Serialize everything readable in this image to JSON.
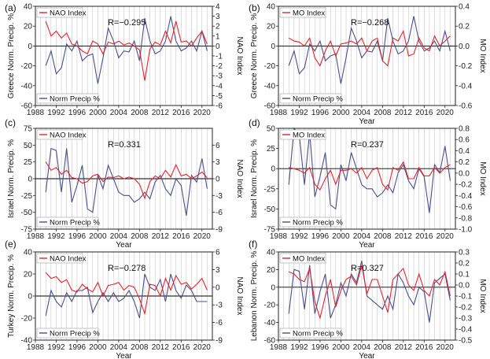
{
  "colors": {
    "precip": "#4a4f8a",
    "index": "#e8222a",
    "grid": "#c8c8c8",
    "axis": "#222222"
  },
  "chart_data": [
    {
      "panel": "(a)",
      "type": "line",
      "r_text": "R=−0.295",
      "xlabel": "Year",
      "ylabel": "Greece Norm. Precip. %",
      "y2label": "NAO Index",
      "x_ticks": [
        "1988",
        "1992",
        "1996",
        "2000",
        "2004",
        "2008",
        "2012",
        "2016",
        "2020"
      ],
      "xlim": [
        1988,
        2022
      ],
      "ylim": [
        -60,
        40
      ],
      "y_ticks": [
        "-60",
        "-40",
        "-20",
        "0",
        "20",
        "40"
      ],
      "y2lim": [
        -6,
        4
      ],
      "y2_ticks": [
        "-6",
        "-5",
        "-4",
        "-3",
        "-2",
        "-1",
        "0",
        "1",
        "2",
        "3",
        "4"
      ],
      "show_xlabel": false,
      "legend_top": "NAO Index",
      "legend_bottom": "Norm Precip %",
      "x": [
        1990,
        1991,
        1992,
        1993,
        1994,
        1995,
        1996,
        1997,
        1998,
        1999,
        2000,
        2001,
        2002,
        2003,
        2004,
        2005,
        2006,
        2007,
        2008,
        2009,
        2010,
        2011,
        2012,
        2013,
        2014,
        2015,
        2016,
        2017,
        2018,
        2019,
        2020,
        2021
      ],
      "series": [
        {
          "values": [
            -20,
            -5,
            -28,
            -22,
            2,
            -5,
            5,
            -15,
            -10,
            -8,
            -38,
            -12,
            18,
            5,
            -12,
            -5,
            -6,
            5,
            -15,
            28,
            5,
            -8,
            -5,
            5,
            30,
            5,
            -5,
            -2,
            5,
            -5,
            15,
            -5
          ]
        },
        {
          "axis": "right",
          "values": [
            2.5,
            1,
            1.5,
            0.8,
            1.3,
            0.2,
            0,
            -0.5,
            -0.8,
            0.5,
            0.2,
            -0.8,
            0.4,
            0.2,
            0.5,
            0.1,
            0.3,
            0,
            -0.4,
            -3.5,
            -0.3,
            0.4,
            0.1,
            1.5,
            0.3,
            2.5,
            0.4,
            0.5,
            0,
            0.8,
            1.5,
            0.2
          ]
        }
      ]
    },
    {
      "panel": "(b)",
      "type": "line",
      "r_text": "R=−0.268",
      "xlabel": "Year",
      "ylabel": "Greece Norm. Precip. %",
      "y2label": "MO Index",
      "x_ticks": [
        "1988",
        "1992",
        "1996",
        "2000",
        "2004",
        "2008",
        "2012",
        "2016",
        "2020"
      ],
      "xlim": [
        1988,
        2022
      ],
      "ylim": [
        -60,
        40
      ],
      "y_ticks": [
        "-60",
        "-40",
        "-20",
        "0",
        "20",
        "40"
      ],
      "y2lim": [
        -0.6,
        0.4
      ],
      "y2_ticks": [
        "-0.6",
        "-0.4",
        "-0.2",
        "0.0",
        "0.2",
        "0.4"
      ],
      "show_xlabel": true,
      "legend_top": "MO Index",
      "legend_bottom": "Norm Precip %",
      "x": [
        1990,
        1991,
        1992,
        1993,
        1994,
        1995,
        1996,
        1997,
        1998,
        1999,
        2000,
        2001,
        2002,
        2003,
        2004,
        2005,
        2006,
        2007,
        2008,
        2009,
        2010,
        2011,
        2012,
        2013,
        2014,
        2015,
        2016,
        2017,
        2018,
        2019,
        2020,
        2021
      ],
      "series": [
        {
          "values": [
            -20,
            -5,
            -28,
            -22,
            2,
            -5,
            5,
            -15,
            -10,
            -8,
            -38,
            -12,
            18,
            5,
            -12,
            -5,
            -6,
            5,
            -15,
            28,
            5,
            -8,
            -5,
            5,
            30,
            5,
            -5,
            -2,
            5,
            -5,
            15,
            -5
          ]
        },
        {
          "axis": "right",
          "values": [
            0.08,
            0.05,
            0.04,
            0,
            0.08,
            -0.12,
            -0.2,
            -0.05,
            0.05,
            -0.1,
            0.02,
            0.03,
            0.05,
            0.02,
            0.08,
            -0.05,
            0.05,
            0.08,
            -0.15,
            -0.2,
            0.08,
            0.05,
            0.15,
            -0.1,
            -0.08,
            0.08,
            -0.02,
            -0.05,
            0.1,
            0,
            0.05,
            0.1
          ]
        }
      ]
    },
    {
      "panel": "(c)",
      "type": "line",
      "r_text": "R=0.331",
      "xlabel": "Year",
      "ylabel": "Israel Norm. Precip. %",
      "y2label": "NAO Index",
      "x_ticks": [
        "1988",
        "1992",
        "1996",
        "2000",
        "2004",
        "2008",
        "2012",
        "2016",
        "2020"
      ],
      "xlim": [
        1988,
        2022
      ],
      "ylim": [
        -75,
        75
      ],
      "y_ticks": [
        "-75",
        "-50",
        "-25",
        "0",
        "25",
        "50",
        "75"
      ],
      "y2lim": [
        -9,
        9
      ],
      "y2_ticks": [
        "-9",
        "-6",
        "-3",
        "0",
        "3",
        "6"
      ],
      "show_xlabel": true,
      "legend_top": "NAO Index",
      "legend_bottom": "Norm Precip %",
      "x": [
        1990,
        1991,
        1992,
        1993,
        1994,
        1995,
        1996,
        1997,
        1998,
        1999,
        2000,
        2001,
        2002,
        2003,
        2004,
        2005,
        2006,
        2007,
        2008,
        2009,
        2010,
        2011,
        2012,
        2013,
        2014,
        2015,
        2016,
        2017,
        2018,
        2019,
        2020,
        2021
      ],
      "series": [
        {
          "values": [
            -20,
            45,
            42,
            -20,
            45,
            -35,
            -10,
            20,
            -45,
            -50,
            5,
            -15,
            20,
            0,
            -20,
            -25,
            -25,
            -35,
            -30,
            -20,
            -30,
            -5,
            5,
            -15,
            -25,
            0,
            -10,
            -55,
            5,
            -5,
            30,
            -15
          ]
        },
        {
          "axis": "right",
          "values": [
            3,
            1.5,
            2,
            0.8,
            1.5,
            0.2,
            0,
            -0.8,
            -0.5,
            0.5,
            0.8,
            -0.5,
            0.3,
            0.2,
            0.5,
            0,
            0.3,
            0,
            -1,
            -3.5,
            -0.5,
            0.5,
            0,
            1.5,
            0.3,
            2.5,
            0.5,
            0.8,
            0,
            0.5,
            1.2,
            0.2
          ]
        }
      ]
    },
    {
      "panel": "(d)",
      "type": "line",
      "r_text": "R=0.237",
      "xlabel": "Year",
      "ylabel": "Israel Norm. Precip. %",
      "y2label": "MO Index",
      "x_ticks": [
        "1988",
        "1992",
        "1996",
        "2000",
        "2004",
        "2008",
        "2012",
        "2016",
        "2020"
      ],
      "xlim": [
        1988,
        2022
      ],
      "ylim": [
        -75,
        50
      ],
      "y_ticks": [
        "-75",
        "-50",
        "-25",
        "0",
        "25",
        "50"
      ],
      "y2lim": [
        -1.0,
        0.8
      ],
      "y2_ticks": [
        "-1.0",
        "-0.8",
        "-0.6",
        "-0.4",
        "-0.2",
        "0.0",
        "0.2",
        "0.4",
        "0.6",
        "0.8"
      ],
      "show_xlabel": true,
      "legend_top": "MO Index",
      "legend_bottom": "Norm Precip %",
      "x": [
        1990,
        1991,
        1992,
        1993,
        1994,
        1995,
        1996,
        1997,
        1998,
        1999,
        2000,
        2001,
        2002,
        2003,
        2004,
        2005,
        2006,
        2007,
        2008,
        2009,
        2010,
        2011,
        2012,
        2013,
        2014,
        2015,
        2016,
        2017,
        2018,
        2019,
        2020,
        2021
      ],
      "series": [
        {
          "values": [
            -20,
            50,
            42,
            -20,
            45,
            -35,
            -10,
            20,
            -45,
            -50,
            5,
            -15,
            20,
            0,
            -20,
            -25,
            -25,
            -35,
            -30,
            -20,
            -30,
            -5,
            5,
            -15,
            -25,
            0,
            -10,
            -55,
            5,
            -5,
            28,
            -15
          ]
        },
        {
          "axis": "right",
          "values": [
            0.1,
            0.08,
            0.05,
            0,
            0.1,
            -0.2,
            -0.3,
            -0.1,
            0.05,
            -0.2,
            0.05,
            0.05,
            0.08,
            0,
            0.1,
            -0.1,
            0.05,
            0.1,
            -0.2,
            -0.3,
            0.1,
            0.05,
            0.2,
            -0.1,
            -0.1,
            0.1,
            -0.05,
            -0.05,
            0.1,
            0,
            0.1,
            0.15
          ]
        }
      ]
    },
    {
      "panel": "(e)",
      "type": "line",
      "r_text": "R=−0.278",
      "xlabel": "Year",
      "ylabel": "Turkey Norm. Precip. %",
      "y2label": "NAO Index",
      "x_ticks": [
        "1988",
        "1992",
        "1996",
        "2000",
        "2004",
        "2008",
        "2012",
        "2016",
        "2020"
      ],
      "xlim": [
        1988,
        2022
      ],
      "ylim": [
        -40,
        40
      ],
      "y_ticks": [
        "-40",
        "-20",
        "0",
        "20",
        "40"
      ],
      "y2lim": [
        -9,
        6
      ],
      "y2_ticks": [
        "-9",
        "-6",
        "-3",
        "0",
        "3",
        "6"
      ],
      "show_xlabel": true,
      "legend_top": "NAO Index",
      "legend_bottom": "Norm Precip %",
      "x": [
        1990,
        1991,
        1992,
        1993,
        1994,
        1995,
        1996,
        1997,
        1998,
        1999,
        2000,
        2001,
        2002,
        2003,
        2004,
        2005,
        2006,
        2007,
        2008,
        2009,
        2010,
        2011,
        2012,
        2013,
        2014,
        2015,
        2016,
        2017,
        2018,
        2019,
        2020,
        2021
      ],
      "series": [
        {
          "values": [
            -18,
            5,
            -5,
            -10,
            3,
            -5,
            5,
            5,
            8,
            -15,
            -5,
            3,
            -5,
            3,
            -5,
            -2,
            5,
            -5,
            -20,
            20,
            8,
            5,
            15,
            -5,
            20,
            5,
            -2,
            10,
            5,
            -5,
            -5,
            -5
          ]
        },
        {
          "axis": "right",
          "values": [
            2.5,
            1.5,
            1.8,
            0.8,
            1.3,
            -0.5,
            -0.8,
            0.5,
            -0.3,
            -0.8,
            0.8,
            -1.5,
            0.3,
            0.5,
            0.8,
            -0.5,
            0.3,
            0,
            -2,
            -4.5,
            0.5,
            0.3,
            -1.5,
            1.5,
            -0.5,
            2,
            0.5,
            0.8,
            -0.3,
            0.5,
            1.5,
            -0.5
          ]
        }
      ]
    },
    {
      "panel": "(f)",
      "type": "line",
      "r_text": "R=0.327",
      "xlabel": "Year",
      "ylabel": "Lebanon Norm. Precip. %",
      "y2label": "MO Index",
      "x_ticks": [
        "1988",
        "1992",
        "1996",
        "2000",
        "2004",
        "2008",
        "2012",
        "2016",
        "2020"
      ],
      "xlim": [
        1988,
        2022
      ],
      "ylim": [
        -60,
        40
      ],
      "y_ticks": [
        "-60",
        "-40",
        "-20",
        "0",
        "20",
        "40"
      ],
      "y2lim": [
        -0.5,
        0.3
      ],
      "y2_ticks": [
        "-0.5",
        "-0.4",
        "-0.3",
        "-0.2",
        "-0.1",
        "0.0",
        "0.1",
        "0.2",
        "0.3"
      ],
      "show_xlabel": true,
      "legend_top": "MO Index",
      "legend_bottom": "Norm Precip %",
      "x": [
        1990,
        1991,
        1992,
        1993,
        1994,
        1995,
        1996,
        1997,
        1998,
        1999,
        2000,
        2001,
        2002,
        2003,
        2004,
        2005,
        2006,
        2007,
        2008,
        2009,
        2010,
        2011,
        2012,
        2013,
        2014,
        2015,
        2016,
        2017,
        2018,
        2019,
        2020,
        2021
      ],
      "series": [
        {
          "values": [
            -30,
            20,
            18,
            -25,
            25,
            -30,
            -5,
            15,
            -35,
            -20,
            5,
            -10,
            15,
            5,
            30,
            -10,
            -15,
            -20,
            -25,
            -10,
            -25,
            15,
            5,
            -10,
            -20,
            0,
            -5,
            -40,
            5,
            10,
            15,
            -15
          ]
        },
        {
          "axis": "right",
          "values": [
            0.12,
            0.1,
            0.05,
            0.03,
            0.15,
            -0.15,
            -0.3,
            -0.1,
            0.05,
            -0.2,
            -0.05,
            0.05,
            0.08,
            0,
            0.18,
            -0.08,
            0.05,
            0.05,
            -0.1,
            -0.25,
            0.05,
            0.1,
            0.15,
            0,
            -0.05,
            0.1,
            -0.05,
            -0.1,
            0.05,
            0,
            0.12,
            -0.1
          ]
        }
      ]
    }
  ]
}
